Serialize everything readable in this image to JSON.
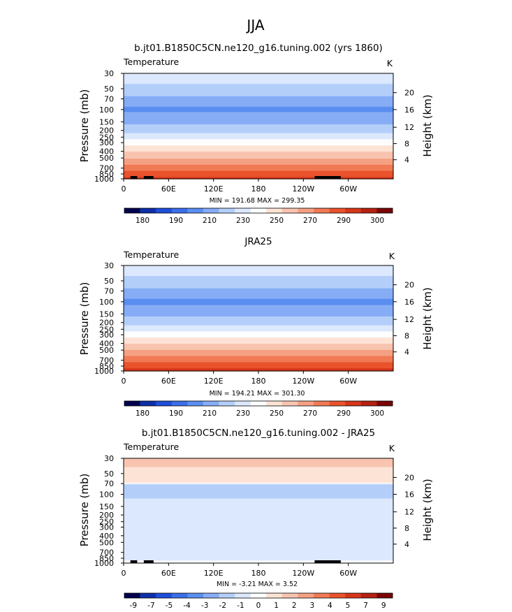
{
  "main_title": "JJA",
  "colors": {
    "temperature_palette": [
      "#00034d",
      "#0f2fa9",
      "#1e4fd8",
      "#3a6ee8",
      "#5b8ef0",
      "#86acf6",
      "#b4cefa",
      "#dbe8fd",
      "#fdfdfd",
      "#fde3d5",
      "#f8c4b0",
      "#f5a083",
      "#f07a55",
      "#e9532c",
      "#d6361a",
      "#b52112",
      "#7a0605"
    ],
    "diff_palette": [
      "#00034d",
      "#0f2fa9",
      "#1e4fd8",
      "#3a6ee8",
      "#5b8ef0",
      "#86acf6",
      "#b4cefa",
      "#dbe8fd",
      "#fdfdfd",
      "#fde3d5",
      "#f8c4b0",
      "#f5a083",
      "#f07a55",
      "#e9532c",
      "#d6361a",
      "#b52112",
      "#7a0605"
    ]
  },
  "chart_data": [
    {
      "type": "heatmap",
      "name": "model",
      "title": "b.jt01.B1850C5CN.ne120_g16.tuning.002 (yrs 1860)",
      "variable": "Temperature",
      "units": "K",
      "ylabel": "Pressure (mb)",
      "ylabel_right": "Height (km)",
      "x_ticks": [
        "0",
        "60E",
        "120E",
        "180",
        "120W",
        "60W"
      ],
      "x_tick_lon": [
        0,
        60,
        120,
        180,
        240,
        300
      ],
      "xlim": [
        0,
        360
      ],
      "y_ticks": [
        "30",
        "50",
        "70",
        "100",
        "150",
        "200",
        "250",
        "300",
        "400",
        "500",
        "700",
        "850",
        "1000"
      ],
      "y_tick_values": [
        30,
        50,
        70,
        100,
        150,
        200,
        250,
        300,
        400,
        500,
        700,
        850,
        1000
      ],
      "ylim": [
        1000,
        30
      ],
      "right_ticks": [
        "20",
        "16",
        "12",
        "8",
        "4"
      ],
      "right_tick_pressure": [
        57,
        100,
        180,
        310,
        530
      ],
      "min_max": "MIN = 191.68 MAX = 299.35",
      "colorbar_labels": [
        "180",
        "190",
        "210",
        "230",
        "250",
        "270",
        "290",
        "300"
      ],
      "colorbar_levels": [
        175,
        180,
        185,
        190,
        200,
        210,
        220,
        230,
        240,
        250,
        260,
        270,
        280,
        290,
        295,
        300
      ],
      "profile": {
        "p": [
          30,
          50,
          70,
          100,
          150,
          200,
          250,
          300,
          400,
          500,
          700,
          850,
          1000
        ],
        "t": [
          226,
          217,
          207,
          198,
          208,
          216,
          226,
          235,
          250,
          259,
          275,
          285,
          293
        ]
      },
      "masks": [
        [
          9,
          18
        ],
        [
          27,
          40
        ],
        [
          255,
          290
        ]
      ]
    },
    {
      "type": "heatmap",
      "name": "obs",
      "title": "JRA25",
      "variable": "Temperature",
      "units": "K",
      "ylabel": "Pressure (mb)",
      "ylabel_right": "Height (km)",
      "x_ticks": [
        "0",
        "60E",
        "120E",
        "180",
        "120W",
        "60W"
      ],
      "x_tick_lon": [
        0,
        60,
        120,
        180,
        240,
        300
      ],
      "xlim": [
        0,
        360
      ],
      "y_ticks": [
        "30",
        "50",
        "70",
        "100",
        "150",
        "200",
        "250",
        "300",
        "400",
        "500",
        "700",
        "850",
        "1000"
      ],
      "y_tick_values": [
        30,
        50,
        70,
        100,
        150,
        200,
        250,
        300,
        400,
        500,
        700,
        850,
        1000
      ],
      "ylim": [
        1000,
        30
      ],
      "right_ticks": [
        "20",
        "16",
        "12",
        "8",
        "4"
      ],
      "right_tick_pressure": [
        57,
        100,
        180,
        310,
        530
      ],
      "min_max": "MIN = 194.21 MAX = 301.30",
      "colorbar_labels": [
        "180",
        "190",
        "210",
        "230",
        "250",
        "270",
        "290",
        "300"
      ],
      "colorbar_levels": [
        175,
        180,
        185,
        190,
        200,
        210,
        220,
        230,
        240,
        250,
        260,
        270,
        280,
        290,
        295,
        300
      ],
      "profile": {
        "p": [
          30,
          50,
          70,
          100,
          150,
          200,
          250,
          300,
          400,
          500,
          700,
          850,
          1000
        ],
        "t": [
          226,
          217,
          207,
          197,
          207,
          216,
          226,
          235,
          250,
          260,
          276,
          287,
          295
        ]
      },
      "masks": []
    },
    {
      "type": "heatmap",
      "name": "diff",
      "title": "b.jt01.B1850C5CN.ne120_g16.tuning.002 - JRA25",
      "variable": "Temperature",
      "units": "K",
      "ylabel": "Pressure (mb)",
      "ylabel_right": "Height (km)",
      "x_ticks": [
        "0",
        "60E",
        "120E",
        "180",
        "120W",
        "60W"
      ],
      "x_tick_lon": [
        0,
        60,
        120,
        180,
        240,
        300
      ],
      "xlim": [
        0,
        360
      ],
      "y_ticks": [
        "30",
        "50",
        "70",
        "100",
        "150",
        "200",
        "250",
        "300",
        "400",
        "500",
        "700",
        "850",
        "1000"
      ],
      "y_tick_values": [
        30,
        50,
        70,
        100,
        150,
        200,
        250,
        300,
        400,
        500,
        700,
        850,
        1000
      ],
      "ylim": [
        1000,
        30
      ],
      "right_ticks": [
        "20",
        "16",
        "12",
        "8",
        "4"
      ],
      "right_tick_pressure": [
        57,
        100,
        180,
        310,
        530
      ],
      "min_max": "MIN = -3.21 MAX = 3.52",
      "colorbar_labels": [
        "-9",
        "-7",
        "-5",
        "-4",
        "-3",
        "-2",
        "-1",
        "0",
        "1",
        "2",
        "3",
        "4",
        "5",
        "7",
        "9"
      ],
      "colorbar_levels": [
        -9,
        -7,
        -5,
        -4,
        -3,
        -2,
        -1,
        0,
        1,
        2,
        3,
        4,
        5,
        7,
        9
      ],
      "profile": {
        "p": [
          30,
          40,
          55,
          68,
          72,
          90,
          150,
          300,
          500,
          700,
          850,
          1000
        ],
        "t": [
          2.4,
          2.0,
          1.6,
          1.0,
          -1.3,
          -1.1,
          -0.9,
          -0.8,
          -0.7,
          -0.6,
          -0.5,
          0.6
        ]
      },
      "masks": [
        [
          9,
          18
        ],
        [
          27,
          40
        ],
        [
          255,
          290
        ]
      ]
    }
  ]
}
